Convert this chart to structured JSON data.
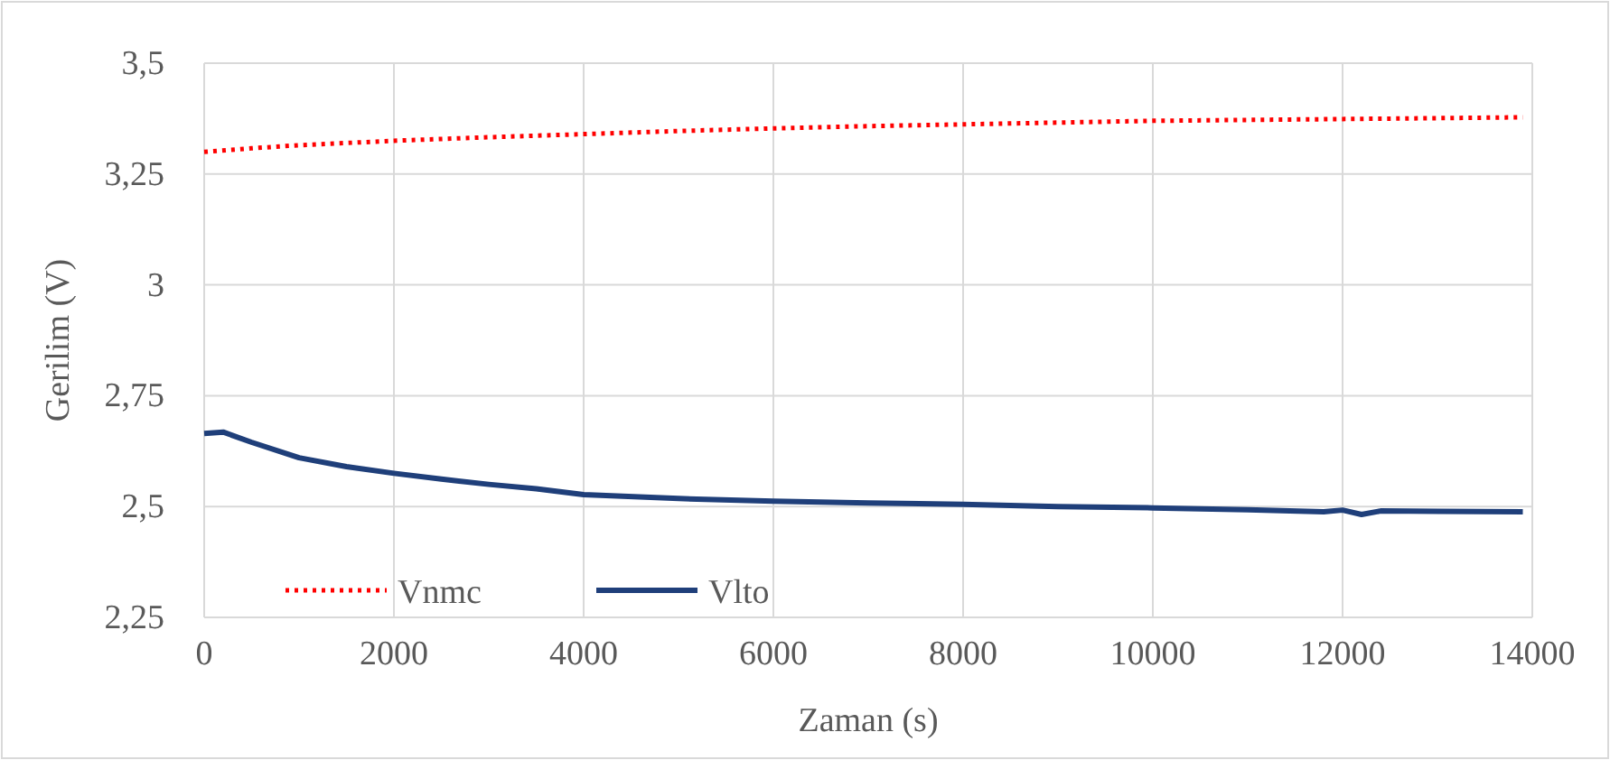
{
  "chart_data": {
    "type": "line",
    "xlabel": "Zaman (s)",
    "ylabel": "Gerilim (V)",
    "xlim": [
      0,
      14000
    ],
    "xticks": [
      0,
      2000,
      4000,
      6000,
      8000,
      10000,
      12000,
      14000
    ],
    "ylim": [
      2.25,
      3.5
    ],
    "yticks": [
      {
        "value": 2.25,
        "label": "2,25"
      },
      {
        "value": 2.5,
        "label": "2,5"
      },
      {
        "value": 2.75,
        "label": "2,75"
      },
      3,
      {
        "value": 3.25,
        "label": "3,25"
      },
      {
        "value": 3.5,
        "label": "3,5"
      }
    ],
    "grid": true,
    "legend": "bottom left",
    "marker": "none",
    "series": [
      {
        "name": "Vnmc",
        "color": "#ff0000",
        "line_style": "dotted",
        "x": [
          0,
          500,
          1000,
          2000,
          3000,
          4000,
          5000,
          6000,
          7000,
          8000,
          9000,
          10000,
          11000,
          12000,
          13000,
          13900
        ],
        "values": [
          3.3,
          3.308,
          3.315,
          3.325,
          3.333,
          3.34,
          3.347,
          3.353,
          3.358,
          3.362,
          3.366,
          3.37,
          3.372,
          3.374,
          3.376,
          3.378
        ]
      },
      {
        "name": "Vlto",
        "color": "#1f3f7a",
        "line_style": "solid",
        "x": [
          0,
          200,
          500,
          1000,
          1500,
          2000,
          2500,
          3000,
          3500,
          4000,
          5000,
          6000,
          7000,
          8000,
          9000,
          10000,
          11000,
          11800,
          12000,
          12200,
          12400,
          13000,
          13900
        ],
        "values": [
          2.665,
          2.668,
          2.645,
          2.61,
          2.59,
          2.575,
          2.562,
          2.55,
          2.54,
          2.527,
          2.518,
          2.512,
          2.508,
          2.505,
          2.5,
          2.497,
          2.493,
          2.488,
          2.492,
          2.482,
          2.49,
          2.489,
          2.488
        ]
      }
    ]
  }
}
